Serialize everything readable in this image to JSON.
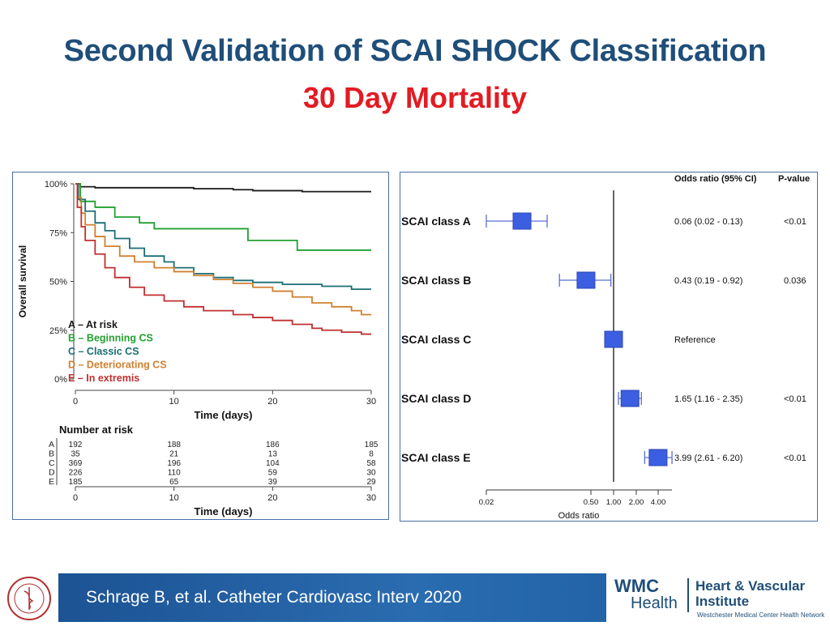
{
  "slide": {
    "title": "Second Validation of SCAI SHOCK Classification",
    "subtitle": "30 Day Mortality"
  },
  "footer": {
    "citation": "Schrage B, et al. Catheter Cardiovasc Interv 2020",
    "logo_wmc": "WMC",
    "logo_health": "Health",
    "logo_line1": "Heart & Vascular",
    "logo_line2": "Institute",
    "logo_network": "Westchester Medical Center Health Network",
    "seal_icon": "medical-college-seal-icon"
  },
  "chart_data": [
    {
      "type": "line",
      "subtype": "kaplan-meier",
      "ylabel": "Overall survival",
      "xlabel": "Time (days)",
      "x_ticks": [
        0,
        10,
        20,
        30
      ],
      "y_ticks": [
        "0%",
        "25%",
        "50%",
        "75%",
        "100%"
      ],
      "xlim": [
        0,
        30
      ],
      "ylim": [
        0,
        100
      ],
      "legend_position": "bottom-left",
      "series": [
        {
          "name": "A – At risk",
          "color": "#1a1a1a",
          "points": [
            [
              0,
              100
            ],
            [
              0.5,
              98.5
            ],
            [
              2,
              98
            ],
            [
              12,
              97.5
            ],
            [
              16,
              97
            ],
            [
              18,
              96.5
            ],
            [
              23,
              96
            ],
            [
              30,
              96
            ]
          ]
        },
        {
          "name": "B – Beginning CS",
          "color": "#22a030",
          "points": [
            [
              0,
              100
            ],
            [
              0.5,
              91
            ],
            [
              2,
              88
            ],
            [
              4,
              83
            ],
            [
              6.5,
              80
            ],
            [
              8,
              77
            ],
            [
              17,
              77
            ],
            [
              17.5,
              71
            ],
            [
              22,
              71
            ],
            [
              22.5,
              66
            ],
            [
              30,
              66
            ]
          ]
        },
        {
          "name": "C – Classic CS",
          "color": "#1a6e73",
          "points": [
            [
              0,
              100
            ],
            [
              0.3,
              92
            ],
            [
              1,
              86
            ],
            [
              2,
              80
            ],
            [
              3,
              76
            ],
            [
              4,
              72
            ],
            [
              5.5,
              67
            ],
            [
              7,
              63
            ],
            [
              9,
              60
            ],
            [
              10,
              57
            ],
            [
              12,
              54
            ],
            [
              14,
              52
            ],
            [
              16,
              50.5
            ],
            [
              18,
              49.5
            ],
            [
              21,
              48.5
            ],
            [
              25,
              47.5
            ],
            [
              28,
              46
            ],
            [
              30,
              46
            ]
          ]
        },
        {
          "name": "D – Deteriorating CS",
          "color": "#d08030",
          "points": [
            [
              0,
              100
            ],
            [
              0.2,
              93
            ],
            [
              0.6,
              85
            ],
            [
              1,
              79
            ],
            [
              2,
              73
            ],
            [
              3,
              68
            ],
            [
              4.5,
              63
            ],
            [
              6,
              60
            ],
            [
              8,
              57
            ],
            [
              10,
              55
            ],
            [
              12,
              53
            ],
            [
              14,
              51
            ],
            [
              16,
              49
            ],
            [
              18,
              47
            ],
            [
              20,
              45
            ],
            [
              22,
              42
            ],
            [
              24,
              39
            ],
            [
              26,
              37
            ],
            [
              28,
              35
            ],
            [
              29,
              33
            ],
            [
              30,
              33
            ]
          ]
        },
        {
          "name": "E – In extremis",
          "color": "#c03030",
          "points": [
            [
              0,
              100
            ],
            [
              0.2,
              88
            ],
            [
              0.6,
              78
            ],
            [
              1,
              71
            ],
            [
              2,
              64
            ],
            [
              3,
              57
            ],
            [
              4,
              52
            ],
            [
              5.5,
              47
            ],
            [
              7,
              43
            ],
            [
              9,
              40
            ],
            [
              11,
              37
            ],
            [
              13,
              35
            ],
            [
              16,
              33
            ],
            [
              18,
              31.5
            ],
            [
              20,
              30
            ],
            [
              22,
              28
            ],
            [
              24,
              26
            ],
            [
              25,
              25
            ],
            [
              27,
              24
            ],
            [
              29,
              23
            ],
            [
              30,
              23
            ]
          ]
        }
      ],
      "risk_table": {
        "title": "Number at risk",
        "times": [
          0,
          10,
          20,
          30
        ],
        "rows": [
          {
            "label": "A",
            "values": [
              "192",
              "188",
              "186",
              "185"
            ]
          },
          {
            "label": "B",
            "values": [
              "35",
              "21",
              "13",
              "8"
            ]
          },
          {
            "label": "C",
            "values": [
              "369",
              "196",
              "104",
              "58"
            ]
          },
          {
            "label": "D",
            "values": [
              "226",
              "110",
              "59",
              "30"
            ]
          },
          {
            "label": "E",
            "values": [
              "185",
              "65",
              "39",
              "29"
            ]
          }
        ],
        "xlabel": "Time (days)"
      }
    },
    {
      "type": "forest",
      "xlabel": "Odds ratio",
      "x_scale": "log",
      "x_ticks": [
        "0.02",
        "0.50",
        "1.00",
        "2.00",
        "4.00"
      ],
      "x_tick_values": [
        0.02,
        0.5,
        1.0,
        2.0,
        4.0
      ],
      "reference_line": 1.0,
      "header_or": "Odds ratio (95% CI)",
      "header_p": "P-value",
      "marker_color": "#3b5fe0",
      "rows": [
        {
          "label": "SCAI class A",
          "or": 0.06,
          "lo": 0.02,
          "hi": 0.13,
          "or_text": "0.06 (0.02 - 0.13)",
          "p": "<0.01"
        },
        {
          "label": "SCAI class B",
          "or": 0.43,
          "lo": 0.19,
          "hi": 0.92,
          "or_text": "0.43 (0.19 - 0.92)",
          "p": "0.036"
        },
        {
          "label": "SCAI class C",
          "or": 1.0,
          "lo": 1.0,
          "hi": 1.0,
          "or_text": "Reference",
          "p": ""
        },
        {
          "label": "SCAI class D",
          "or": 1.65,
          "lo": 1.16,
          "hi": 2.35,
          "or_text": "1.65 (1.16 - 2.35)",
          "p": "<0.01"
        },
        {
          "label": "SCAI class E",
          "or": 3.99,
          "lo": 2.61,
          "hi": 6.2,
          "or_text": "3.99 (2.61 - 6.20)",
          "p": "<0.01"
        }
      ]
    }
  ]
}
